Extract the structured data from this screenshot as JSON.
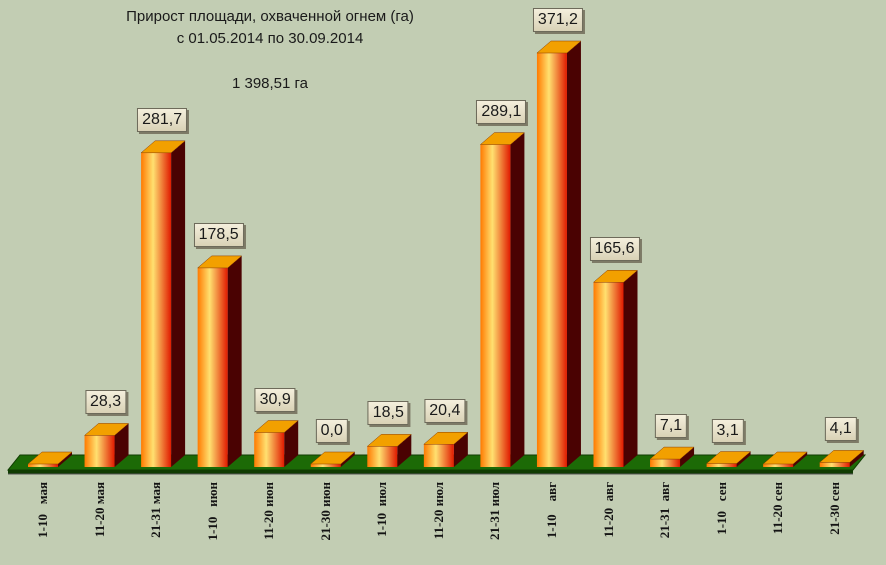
{
  "chart_data": {
    "type": "bar",
    "title": "Прирост площади, охваченной огнем (га)",
    "subtitle": "с 01.05.2014  по  30.09.2014",
    "total": "1 398,51 га",
    "categories": [
      "1-10   мая",
      "11-20 мая",
      "21-31 мая",
      "1-10   июн",
      "11-20 июн",
      "21-30 июн",
      "1-10  июл",
      "11-20 июл",
      "21-31 июл",
      "1-10    авг",
      "11-20  авг",
      "21-31  авг",
      "1-10   сен",
      "11-20 сен",
      "21-30 сен"
    ],
    "values": [
      0.0,
      28.3,
      281.7,
      178.5,
      30.9,
      0.0,
      18.5,
      20.4,
      289.1,
      371.2,
      165.6,
      7.1,
      3.1,
      0.0,
      4.1
    ],
    "data_labels": [
      "",
      "28,3",
      "281,7",
      "178,5",
      "30,9",
      "0,0",
      "18,5",
      "20,4",
      "289,1",
      "371,2",
      "165,6",
      "7,1",
      "3,1",
      "",
      "4,1"
    ],
    "ylim": [
      0,
      371.2
    ],
    "grid": false,
    "legend": "none",
    "colors": {
      "bar_gradient": [
        "#ff7a00",
        "#ffe070",
        "#e01a00"
      ],
      "bar_side": "#4a0202",
      "bar_top": "#f2a000",
      "floor": "#1c6a06",
      "floor_edge": "#103c02",
      "background": "#c2cdb3"
    }
  }
}
